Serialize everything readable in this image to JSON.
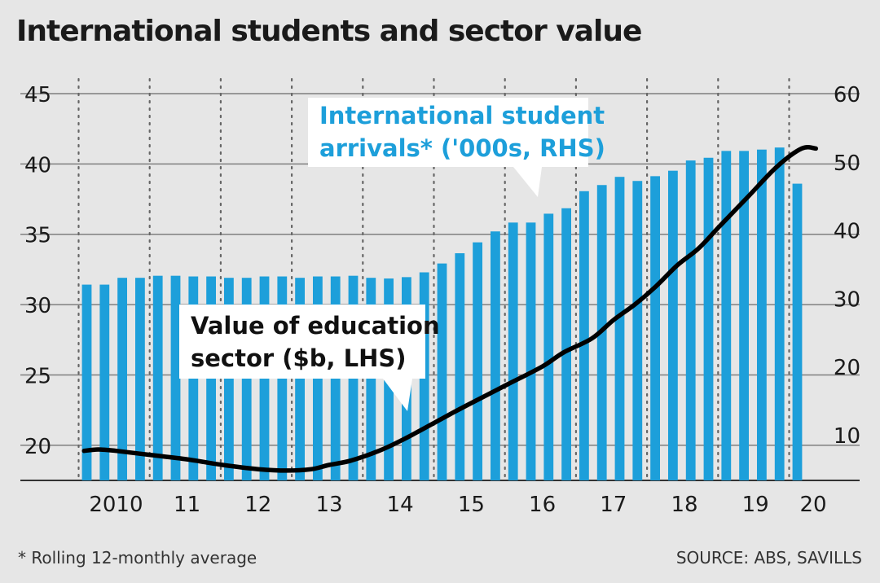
{
  "chart_data": {
    "type": "bar+line",
    "title": "International students and sector value",
    "footnote": "* Rolling 12-monthly average",
    "source": "SOURCE: ABS, SAVILLS",
    "x_tick_labels": [
      "2010",
      "11",
      "12",
      "13",
      "14",
      "15",
      "16",
      "17",
      "18",
      "19",
      "20"
    ],
    "y_left": {
      "ticks": [
        "20",
        "25",
        "30",
        "35",
        "40",
        "45"
      ],
      "range": [
        17.5,
        45
      ]
    },
    "y_right": {
      "ticks": [
        "10",
        "20",
        "30",
        "40",
        "50",
        "60"
      ],
      "range": [
        3.3,
        60
      ]
    },
    "grid": true,
    "bar_series": {
      "annotation_line1": "International student",
      "annotation_line2": "arrivals* ('000s, RHS)",
      "axis": "right",
      "color": "#1d9fda",
      "values": [
        32,
        32,
        33,
        33,
        33.3,
        33.3,
        33.2,
        33.2,
        33,
        33,
        33.2,
        33.2,
        33,
        33.2,
        33.2,
        33.3,
        33,
        32.9,
        33.1,
        33.8,
        35.1,
        36.6,
        38.2,
        39.8,
        41.1,
        41.1,
        42.4,
        43.2,
        45.7,
        46.6,
        47.8,
        47.2,
        47.9,
        48.7,
        50.2,
        50.6,
        51.6,
        51.6,
        51.8,
        52.1,
        46.8
      ]
    },
    "line_series": {
      "annotation_line1": "Value of education",
      "annotation_line2": "sector ($b, LHS)",
      "axis": "left",
      "color": "#000000",
      "x": [
        2009.55,
        2009.75,
        2010.0,
        2010.5,
        2011.0,
        2011.5,
        2012.0,
        2012.4,
        2012.75,
        2013.0,
        2013.3,
        2013.7,
        2014.0,
        2014.3,
        2014.7,
        2015.0,
        2015.5,
        2016.0,
        2016.3,
        2016.7,
        2017.0,
        2017.3,
        2017.6,
        2017.9,
        2018.2,
        2018.5,
        2018.9,
        2019.3,
        2019.65,
        2019.85
      ],
      "y": [
        19.6,
        19.7,
        19.6,
        19.3,
        19.0,
        18.6,
        18.3,
        18.2,
        18.3,
        18.6,
        18.9,
        19.6,
        20.3,
        21.1,
        22.2,
        23.0,
        24.3,
        25.6,
        26.6,
        27.6,
        28.9,
        30.0,
        31.3,
        32.8,
        34.0,
        35.6,
        37.7,
        39.8,
        41.1,
        41.1
      ]
    }
  }
}
